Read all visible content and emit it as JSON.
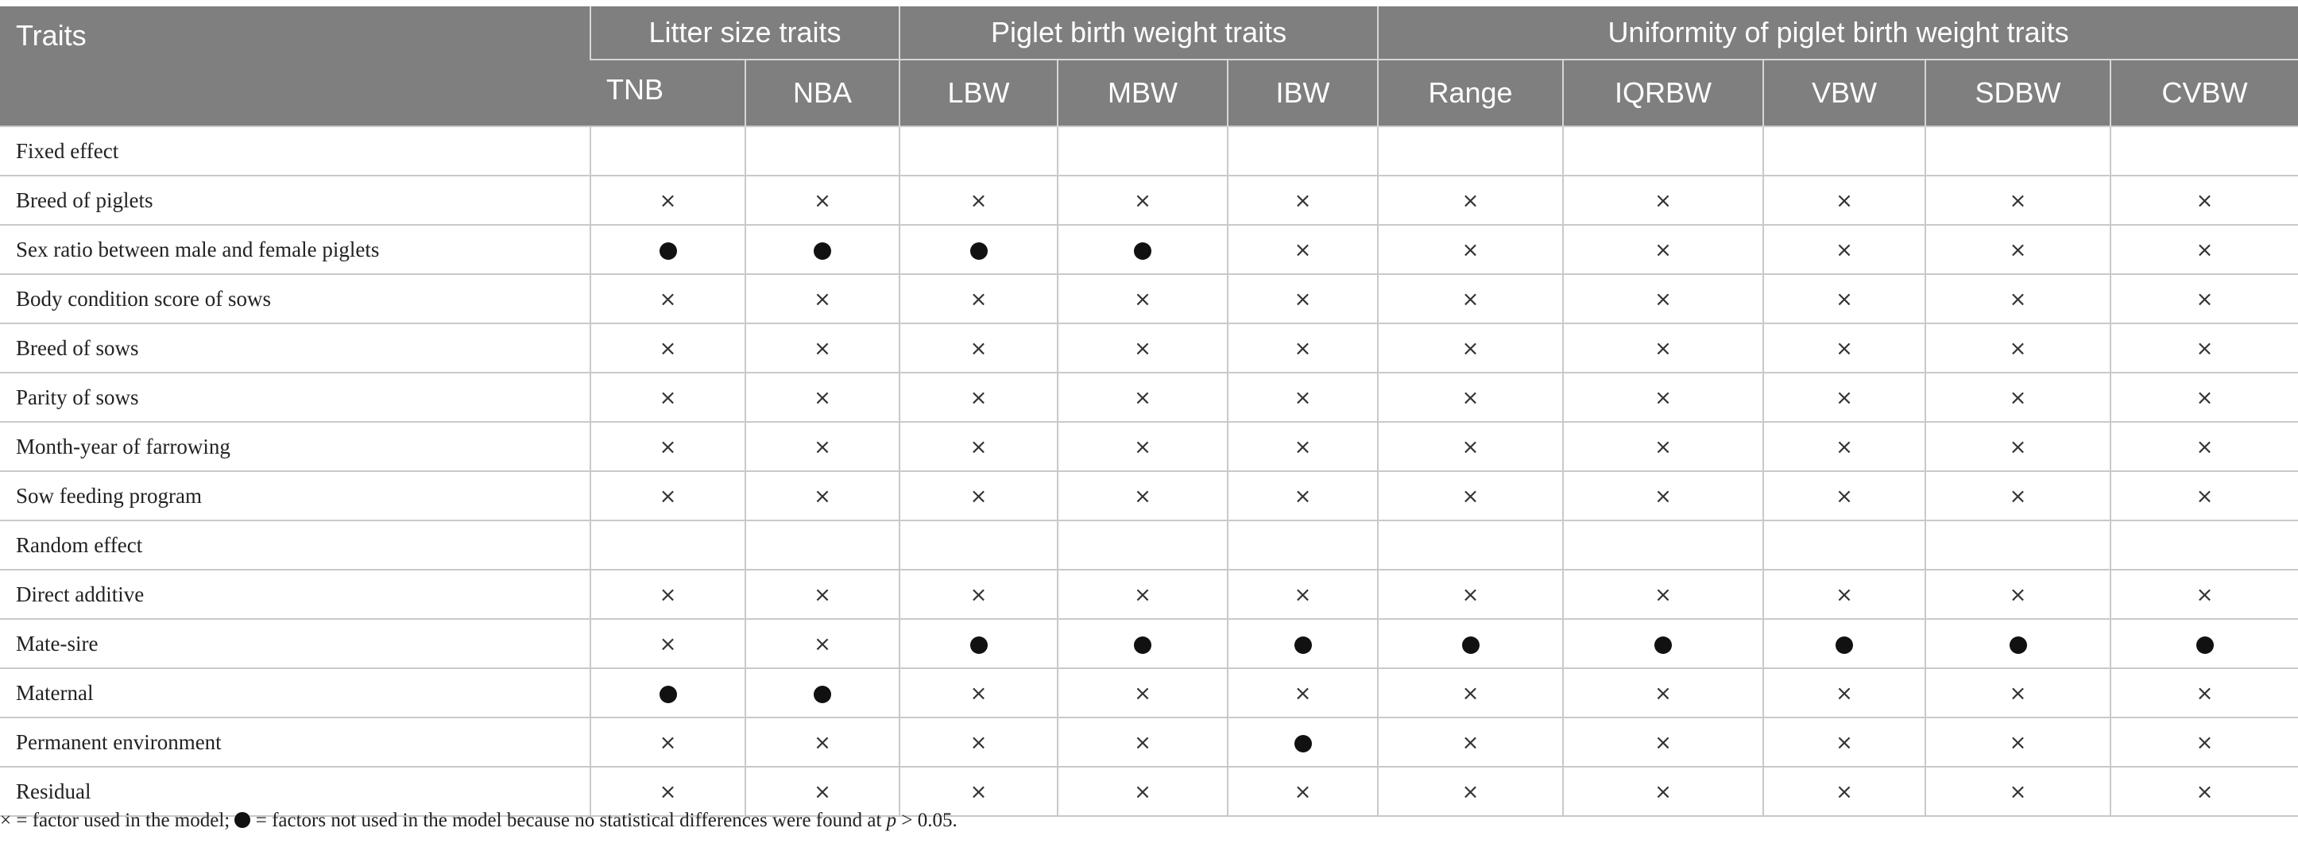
{
  "table": {
    "corner_label": "Traits",
    "groups": [
      {
        "label": "Litter size traits"
      },
      {
        "label": "Piglet birth weight traits"
      },
      {
        "label": "Uniformity of piglet birth weight traits"
      }
    ],
    "columns": [
      "TNB",
      "NBA",
      "LBW",
      "MBW",
      "IBW",
      "Range",
      "IQRBW",
      "VBW",
      "SDBW",
      "CVBW"
    ],
    "symbols": {
      "cross": "×",
      "dot_name": "filled-circle"
    },
    "rows": [
      {
        "label": "Fixed effect",
        "section": true,
        "cells": []
      },
      {
        "label": "Breed of piglets",
        "cells": [
          "x",
          "x",
          "x",
          "x",
          "x",
          "x",
          "x",
          "x",
          "x",
          "x"
        ]
      },
      {
        "label": "Sex ratio between male and female piglets",
        "cells": [
          "o",
          "o",
          "o",
          "o",
          "x",
          "x",
          "x",
          "x",
          "x",
          "x"
        ]
      },
      {
        "label": "Body condition score of sows",
        "cells": [
          "x",
          "x",
          "x",
          "x",
          "x",
          "x",
          "x",
          "x",
          "x",
          "x"
        ]
      },
      {
        "label": "Breed of sows",
        "cells": [
          "x",
          "x",
          "x",
          "x",
          "x",
          "x",
          "x",
          "x",
          "x",
          "x"
        ]
      },
      {
        "label": "Parity of sows",
        "cells": [
          "x",
          "x",
          "x",
          "x",
          "x",
          "x",
          "x",
          "x",
          "x",
          "x"
        ]
      },
      {
        "label": "Month-year of farrowing",
        "cells": [
          "x",
          "x",
          "x",
          "x",
          "x",
          "x",
          "x",
          "x",
          "x",
          "x"
        ]
      },
      {
        "label": "Sow feeding program",
        "cells": [
          "x",
          "x",
          "x",
          "x",
          "x",
          "x",
          "x",
          "x",
          "x",
          "x"
        ]
      },
      {
        "label": "Random effect",
        "section": true,
        "cells": []
      },
      {
        "label": "Direct additive",
        "cells": [
          "x",
          "x",
          "x",
          "x",
          "x",
          "x",
          "x",
          "x",
          "x",
          "x"
        ]
      },
      {
        "label": "Mate-sire",
        "cells": [
          "x",
          "x",
          "o",
          "o",
          "o",
          "o",
          "o",
          "o",
          "o",
          "o"
        ]
      },
      {
        "label": "Maternal",
        "cells": [
          "o",
          "o",
          "x",
          "x",
          "x",
          "x",
          "x",
          "x",
          "x",
          "x"
        ]
      },
      {
        "label": "Permanent environment",
        "cells": [
          "x",
          "x",
          "x",
          "x",
          "o",
          "x",
          "x",
          "x",
          "x",
          "x"
        ]
      },
      {
        "label": "Residual",
        "cells": [
          "x",
          "x",
          "x",
          "x",
          "x",
          "x",
          "x",
          "x",
          "x",
          "x"
        ]
      }
    ]
  },
  "footnote": {
    "part1": "× = factor used in the model;",
    "part2": " = factors not used in the model because no statistical differences were found at ",
    "p": "p",
    "part3": " > 0.05."
  }
}
